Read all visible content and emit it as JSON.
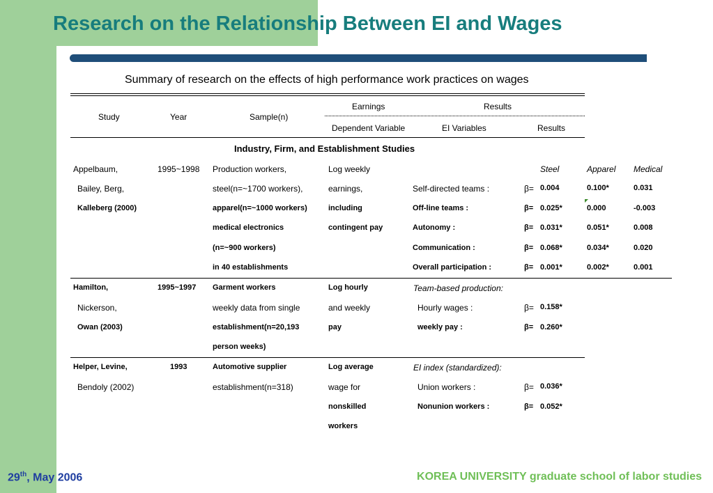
{
  "title": "Research on the Relationship Between EI and Wages",
  "footer": {
    "date_day": "29",
    "date_sup": "th",
    "date_rest": ", May 2006",
    "org": "KOREA UNIVERSITY graduate school of labor studies"
  },
  "table": {
    "caption": "Summary of research on the effects of high performance work practices on wages",
    "headers": {
      "study": "Study",
      "year": "Year",
      "sample": "Sample(n)",
      "earnings": "Earnings",
      "results_group": "Results",
      "dependent": "Dependent Variable",
      "ei_vars": "EI Variables",
      "results": "Results"
    },
    "section_title": "Industry, Firm, and Establishment Studies",
    "sector_heads": [
      "Steel",
      "Apparel",
      "Medical"
    ],
    "study1": {
      "study": [
        "Appelbaum,",
        "Bailey, Berg,",
        "Kalleberg (2000)"
      ],
      "year": "1995~1998",
      "sample": [
        "Production workers,",
        "steel(n=~1700 workers),",
        "apparel(n=~1000 workers)",
        "medical electronics",
        "(n=~900 workers)",
        "in 40 establishments"
      ],
      "dep": [
        "Log weekly",
        "earnings,",
        "including",
        "contingent pay"
      ],
      "rows": [
        {
          "var": "Self-directed teams :",
          "beta": "β=",
          "v1": "0.004",
          "v2": "0.100*",
          "v3": "0.031"
        },
        {
          "var": "Off-line teams :",
          "beta": "β=",
          "v1": "0.025*",
          "v2": "0.000",
          "v3": "-0.003"
        },
        {
          "var": "Autonomy :",
          "beta": "β=",
          "v1": "0.031*",
          "v2": "0.051*",
          "v3": "0.008"
        },
        {
          "var": "Communication :",
          "beta": "β=",
          "v1": "0.068*",
          "v2": "0.034*",
          "v3": "0.020"
        },
        {
          "var": "Overall participation :",
          "beta": "β=",
          "v1": "0.001*",
          "v2": "0.002*",
          "v3": "0.001"
        }
      ]
    },
    "study2": {
      "study": [
        "Hamilton,",
        "Nickerson,",
        "Owan (2003)"
      ],
      "year": "1995~1997",
      "sample": [
        "Garment workers",
        "weekly data from single",
        "establishment(n=20,193",
        "person weeks)"
      ],
      "dep": [
        "Log hourly",
        "and weekly",
        "pay"
      ],
      "group": "Team-based production:",
      "rows": [
        {
          "var": "Hourly wages :",
          "beta": "β=",
          "v1": "0.158*"
        },
        {
          "var": "weekly pay :",
          "beta": "β=",
          "v1": "0.260*"
        }
      ]
    },
    "study3": {
      "study": [
        "Helper, Levine,",
        "Bendoly (2002)"
      ],
      "year": "1993",
      "sample": [
        "Automotive supplier",
        "establishment(n=318)"
      ],
      "dep": [
        "Log average",
        "wage for",
        "nonskilled",
        "workers"
      ],
      "group": "EI index (standardized):",
      "rows": [
        {
          "var": "Union workers :",
          "beta": "β=",
          "v1": "0.036*"
        },
        {
          "var": "Nonunion workers :",
          "beta": "β=",
          "v1": "0.052*"
        }
      ]
    }
  }
}
